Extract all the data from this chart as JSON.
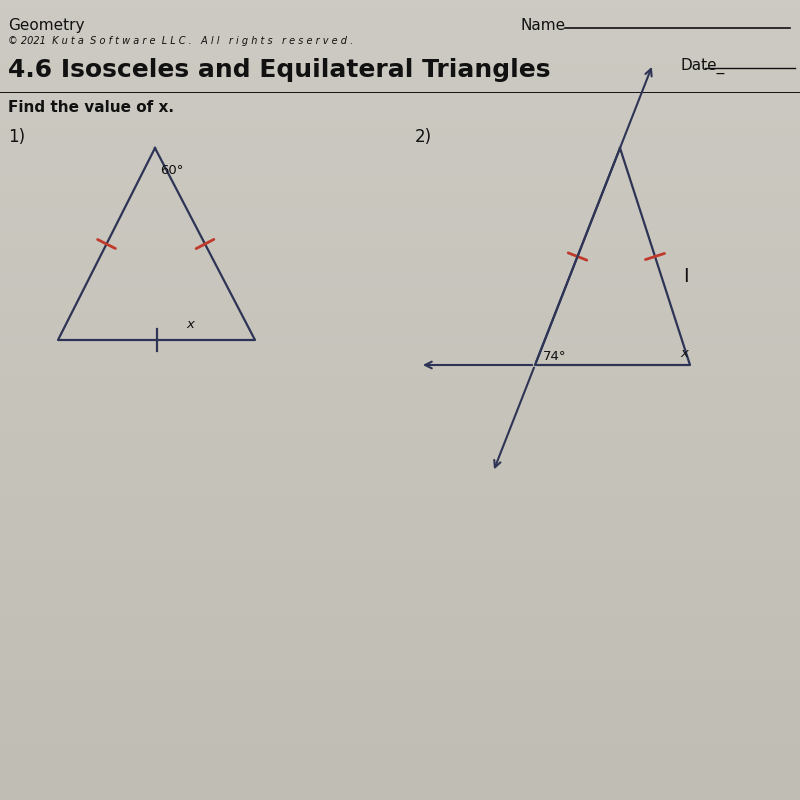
{
  "bg_color": "#cccaC2",
  "bg_color_top": "#c8c5bc",
  "bg_color_mid": "#d4d2c8",
  "bg_color_bot": "#c0bdb4",
  "header_line1": "Geometry",
  "header_name": "Name",
  "header_underline": "_______________",
  "header_line2": "© 2021  K u t a  S o f t w a r e  L L C .   A l l   r i g h t s   r e s e r v e d .",
  "title": "4.6 Isosceles and Equilateral Triangles",
  "date_label": "Date_",
  "instruction": "Find the value of x.",
  "prob1_label": "1)",
  "prob2_label": "2)",
  "tri1_angle_label": "60°",
  "tri1_x_label": "x",
  "tri2_angle_label": "74°",
  "tri2_x_label": "x",
  "line_color": "#2e3455",
  "tick_color": "#c0392b",
  "text_color": "#111111",
  "title_color": "#111111"
}
